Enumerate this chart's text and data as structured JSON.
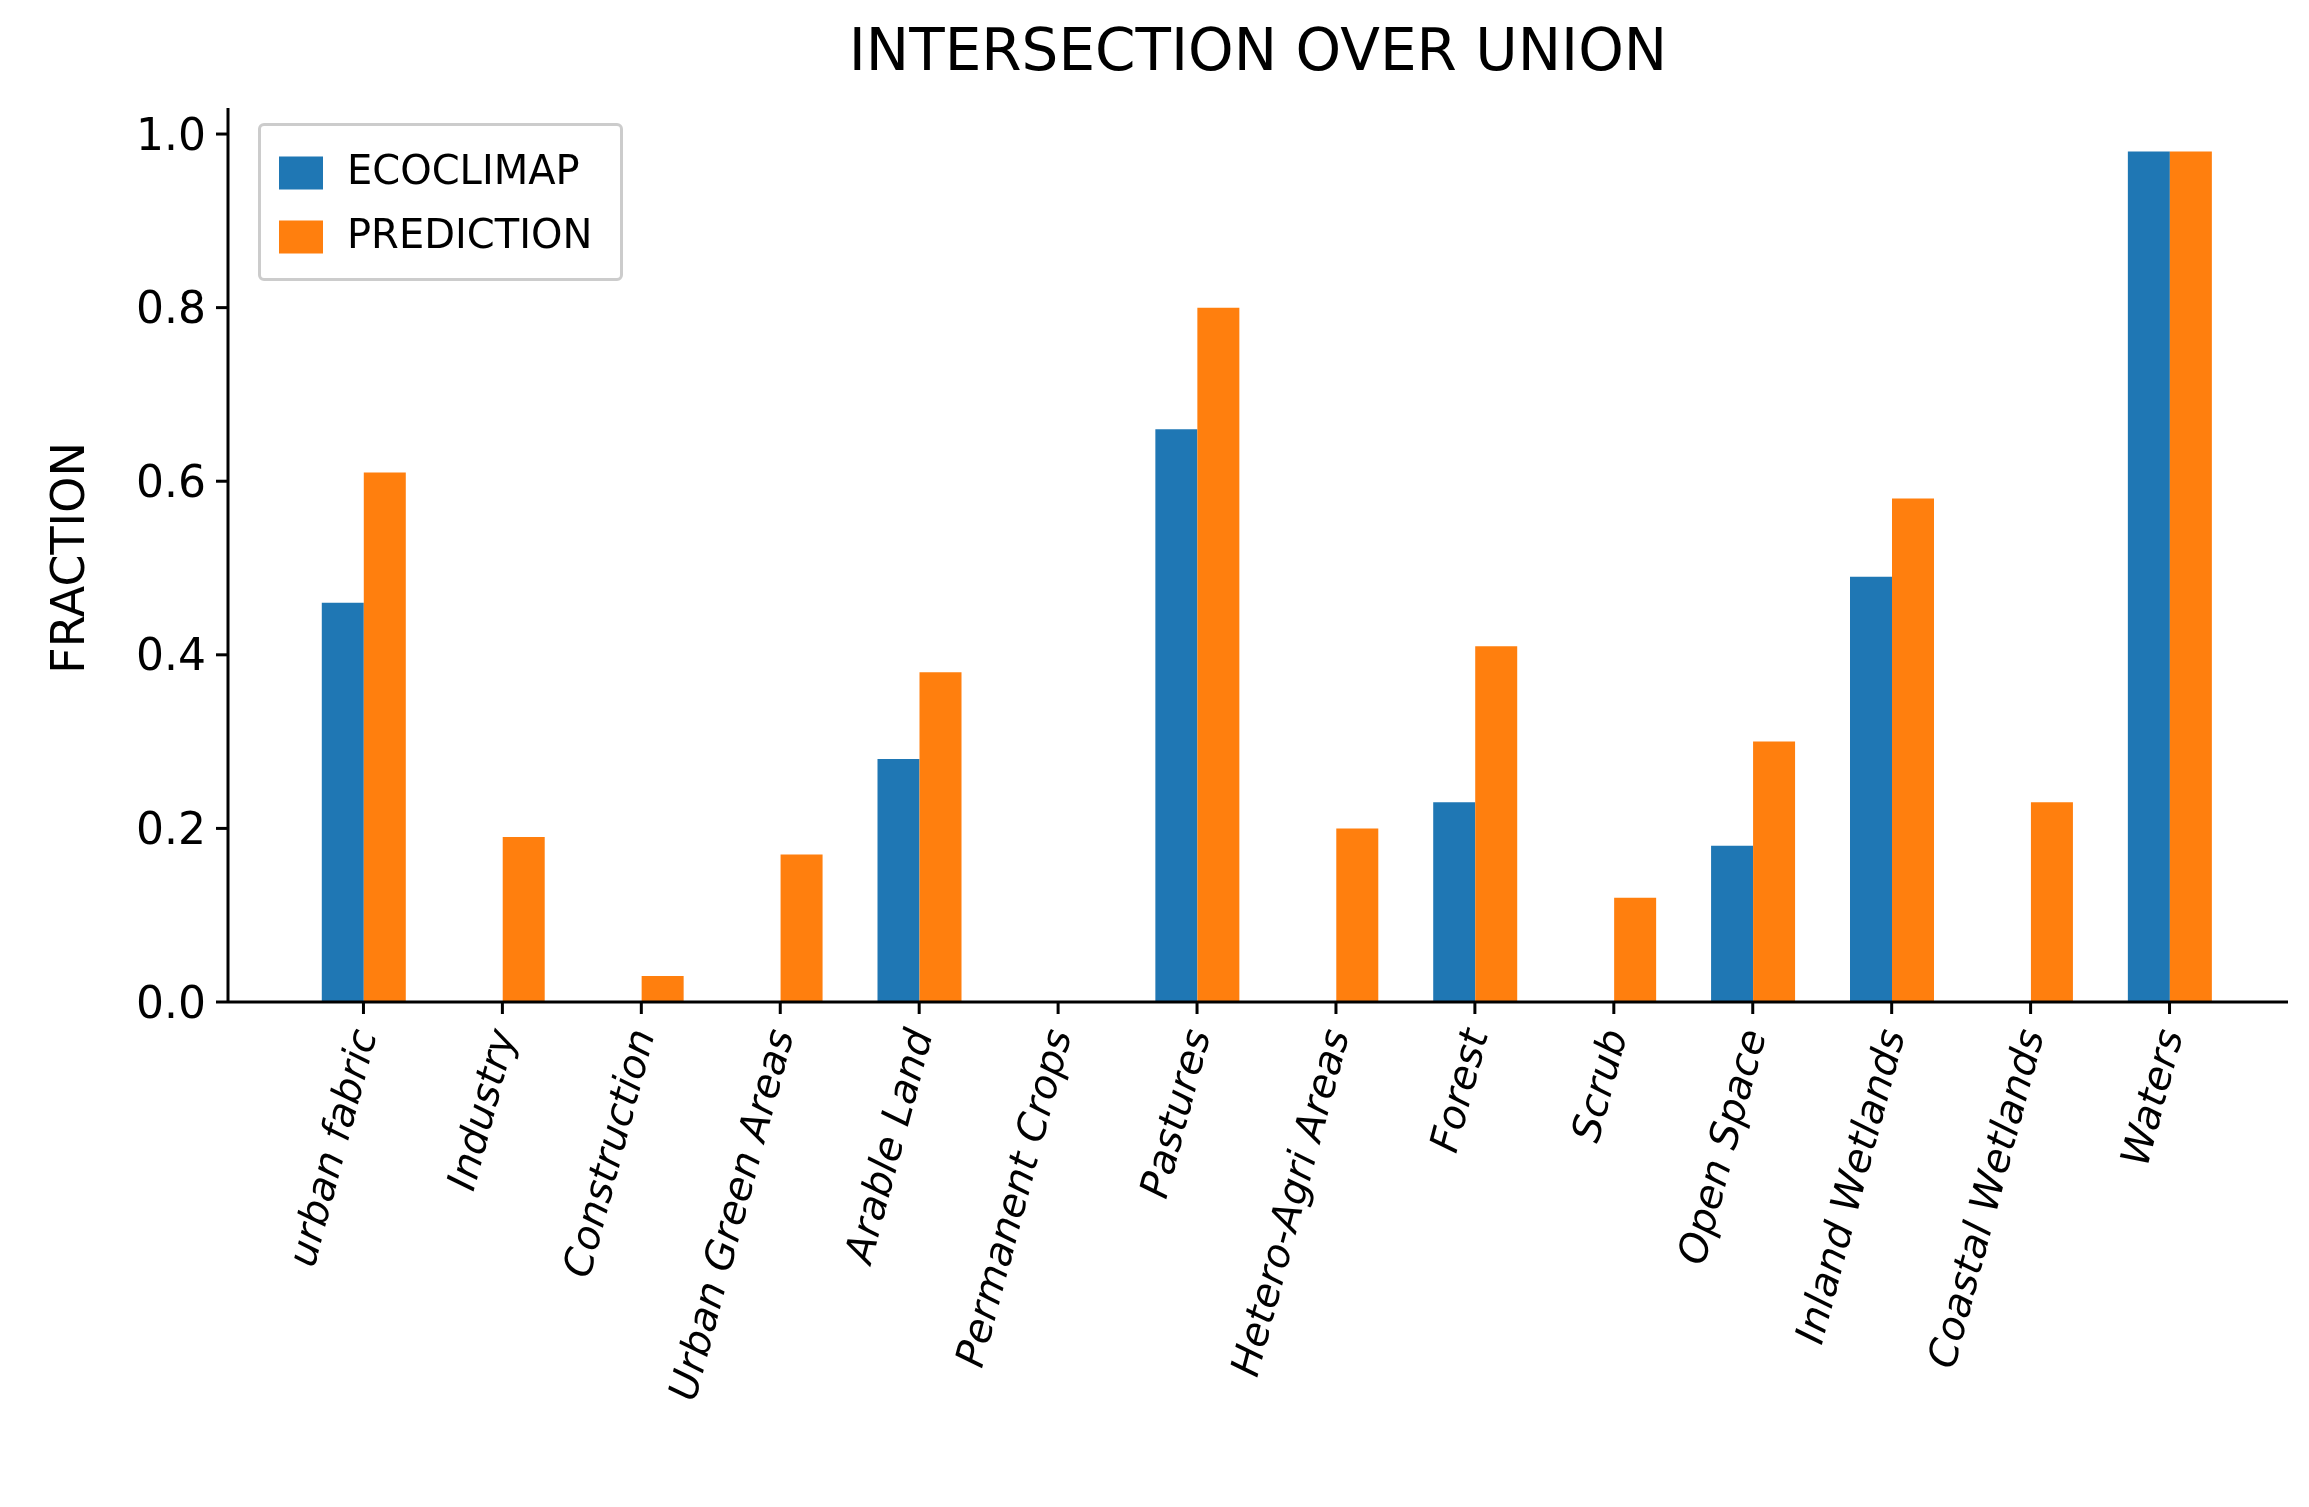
{
  "chart_data": {
    "type": "bar",
    "title": "INTERSECTION OVER UNION",
    "ylabel": "FRACTION",
    "categories": [
      "urban fabric",
      "Industry",
      "Construction",
      "Urban Green Areas",
      "Arable Land",
      "Permanent Crops",
      "Pastures",
      "Hetero-Agri Areas",
      "Forest",
      "Scrub",
      "Open Space",
      "Inland Wetlands",
      "Coastal Wetlands",
      "Waters"
    ],
    "series": [
      {
        "name": "ECOCLIMAP",
        "color": "#1f77b4",
        "values": [
          0.46,
          0,
          0,
          0,
          0.28,
          0,
          0.66,
          0,
          0.23,
          0,
          0.18,
          0.49,
          0,
          0.98
        ]
      },
      {
        "name": "PREDICTION",
        "color": "#ff7f0e",
        "values": [
          0.61,
          0.19,
          0.03,
          0.17,
          0.38,
          0,
          0.8,
          0.2,
          0.41,
          0.12,
          0.3,
          0.58,
          0.23,
          0.98
        ]
      }
    ],
    "ylim": [
      0,
      1.03
    ],
    "yticks": [
      {
        "value": 0,
        "label": "0.0"
      },
      0.2,
      0.4,
      0.6,
      0.8,
      {
        "value": 1,
        "label": "1.0"
      }
    ],
    "grid": false,
    "legend": "top left"
  }
}
